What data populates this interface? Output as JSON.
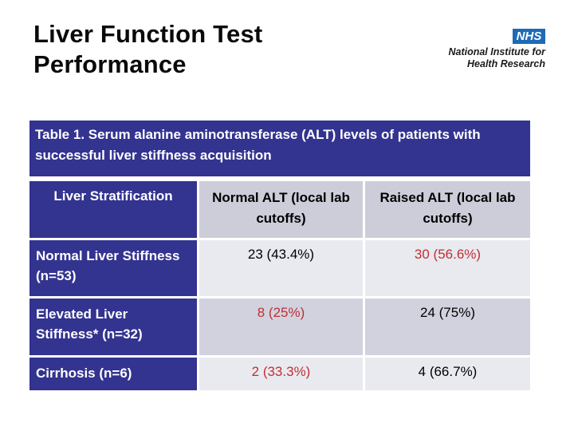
{
  "title": {
    "line1": "Liver Function Test",
    "line2": "Performance"
  },
  "logo": {
    "nhs_text": "NHS",
    "org_line1": "National Institute for",
    "org_line2": "Health Research"
  },
  "table": {
    "caption": "Table 1. Serum alanine aminotransferase (ALT) levels of patients with successful liver stiffness acquisition",
    "headers": [
      "Liver Stratification",
      "Normal ALT (local lab cutoffs)",
      "Raised ALT (local lab cutoffs)"
    ],
    "rows": [
      {
        "label": "Normal Liver Stiffness (n=53)",
        "cells": [
          {
            "text": "23 (43.4%)",
            "color": "val-black"
          },
          {
            "text": "30 (56.6%)",
            "color": "val-red"
          }
        ]
      },
      {
        "label": "Elevated Liver Stiffness* (n=32)",
        "cells": [
          {
            "text": "8 (25%)",
            "color": "val-red"
          },
          {
            "text": "24 (75%)",
            "color": "val-black"
          }
        ]
      },
      {
        "label": "Cirrhosis (n=6)",
        "cells": [
          {
            "text": "2 (33.3%)",
            "color": "val-red"
          },
          {
            "text": "4 (66.7%)",
            "color": "val-black"
          }
        ]
      }
    ]
  },
  "colors": {
    "table_blue": "#333390",
    "header_cell_bg": "#CDCDDA",
    "row_light_bg": "#E9E9F0",
    "row_dark_bg": "#D2D2DF",
    "value_red": "#C03030",
    "nhs_blue": "#1E6AB8",
    "title_black": "#0a0a0a"
  },
  "chart_data": {
    "type": "table",
    "title": "Table 1. Serum alanine aminotransferase (ALT) levels of patients with successful liver stiffness acquisition",
    "columns": [
      "Liver Stratification",
      "Normal ALT (local lab cutoffs)",
      "Raised ALT (local lab cutoffs)"
    ],
    "rows": [
      [
        "Normal Liver Stiffness (n=53)",
        "23 (43.4%)",
        "30 (56.6%)"
      ],
      [
        "Elevated Liver Stiffness* (n=32)",
        "8 (25%)",
        "24 (75%)"
      ],
      [
        "Cirrhosis (n=6)",
        "2 (33.3%)",
        "4 (66.7%)"
      ]
    ]
  }
}
